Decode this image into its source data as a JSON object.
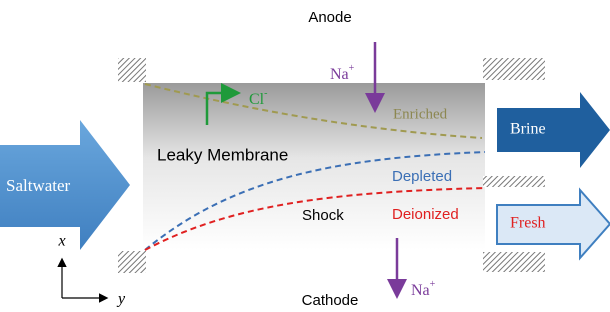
{
  "title": {
    "anode": "Anode",
    "cathode": "Cathode"
  },
  "flows": {
    "inlet": "Saltwater",
    "brine": "Brine",
    "fresh": "Fresh"
  },
  "membrane": {
    "label": "Leaky Membrane",
    "enriched": "Enriched",
    "depleted": "Depleted",
    "deionized": "Deionized",
    "shock": "Shock"
  },
  "ions": {
    "chloride": {
      "base": "Cl",
      "sup": "-"
    },
    "sodium_top": {
      "base": "Na",
      "sup": "+"
    },
    "sodium_bottom": {
      "base": "Na",
      "sup": "+"
    }
  },
  "axes": {
    "x": "x",
    "y": "y"
  }
}
